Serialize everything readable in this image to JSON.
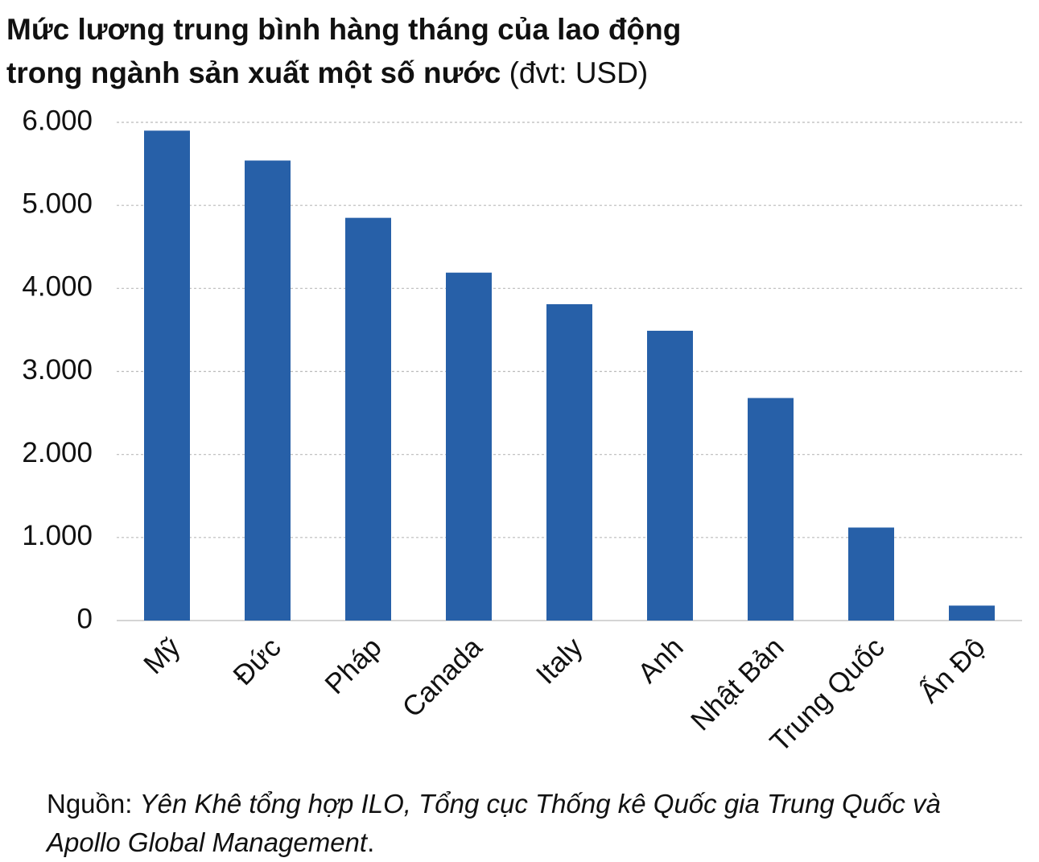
{
  "chart_data": {
    "type": "bar",
    "title": [
      "Mức lương trung bình hàng tháng của lao động",
      "trong ngành sản xuất một số nước"
    ],
    "subtitle": "(đvt: USD)",
    "categories": [
      "Mỹ",
      "Đức",
      "Pháp",
      "Canada",
      "Italy",
      "Anh",
      "Nhật Bản",
      "Trung Quốc",
      "Ấn Độ"
    ],
    "values": [
      5900,
      5540,
      4850,
      4190,
      3810,
      3490,
      2680,
      1120,
      180
    ],
    "color": "#2760a8",
    "ylim": [
      0,
      6000
    ],
    "yticks": [
      0,
      {
        "value": 1000,
        "label": "1.000"
      },
      {
        "value": 2000,
        "label": "2.000"
      },
      {
        "value": 3000,
        "label": "3.000"
      },
      {
        "value": 4000,
        "label": "4.000"
      },
      {
        "value": 5000,
        "label": "5.000"
      },
      {
        "value": 6000,
        "label": "6.000"
      }
    ],
    "grid": true,
    "source": {
      "label": "Nguồn:",
      "text": "Yên Khê tổng hợp ILO, Tổng cục Thống kê Quốc gia Trung Quốc và Apollo Global Management",
      "end": "."
    }
  }
}
